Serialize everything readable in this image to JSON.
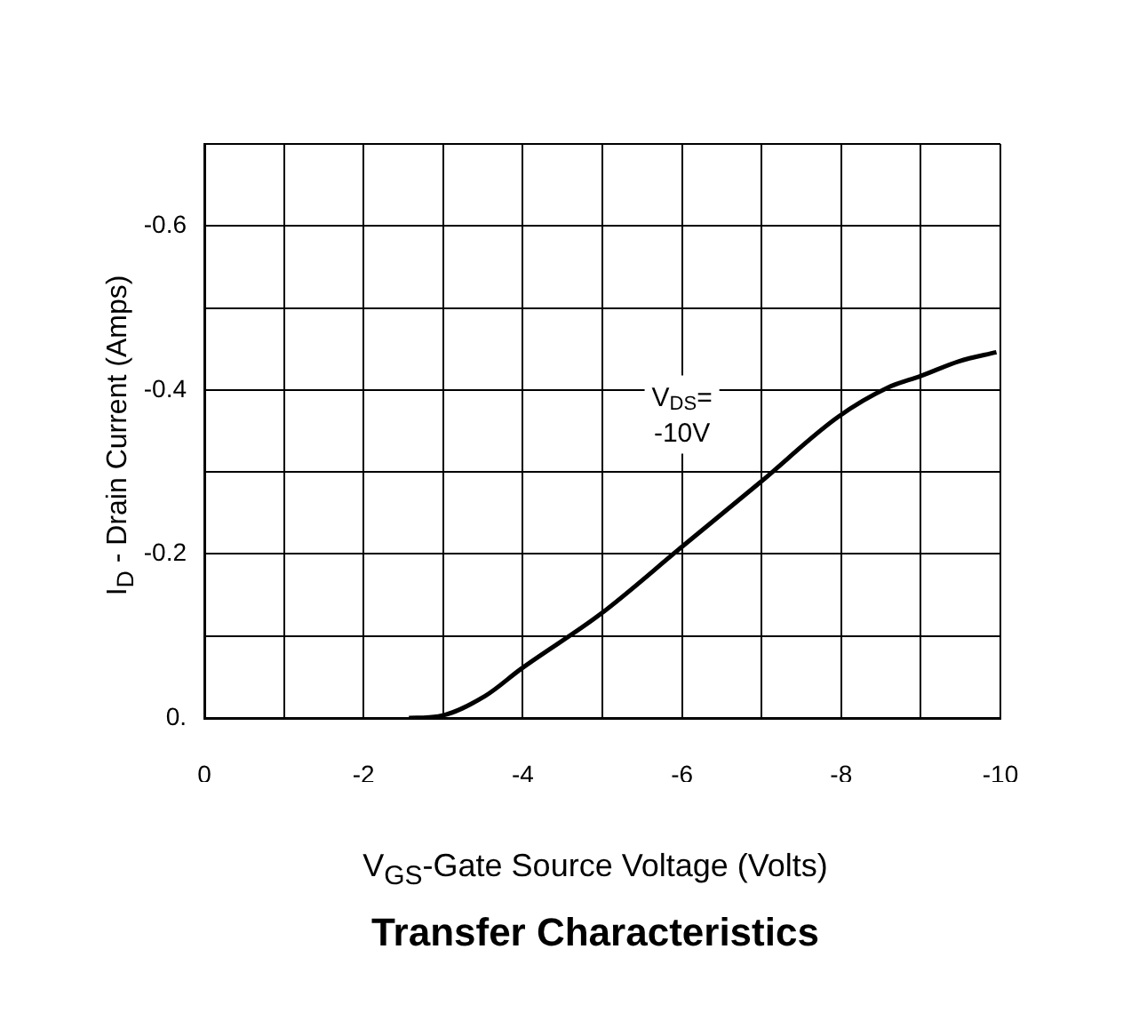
{
  "chart_data": {
    "type": "line",
    "title": "Transfer Characteristics",
    "xlabel": "V$_{GS}$-Gate Source Voltage (Volts)",
    "ylabel": "I$_{D}$ - Drain Current (Amps)",
    "x": [
      -2.57,
      -2.94,
      -3.53,
      -3.98,
      -4.98,
      -5.99,
      -6.99,
      -7.96,
      -8.59,
      -9.0,
      -9.48,
      -9.95
    ],
    "series": [
      {
        "color": "#000000",
        "values": [
          0,
          -0.002,
          -0.027,
          -0.06,
          -0.127,
          -0.208,
          -0.288,
          -0.367,
          -0.403,
          -0.417,
          -0.435,
          -0.446
        ]
      }
    ],
    "xlim": [
      0,
      -10
    ],
    "xticks": [
      0,
      {
        "value": -1,
        "label": null
      },
      -2,
      {
        "value": -3,
        "label": null
      },
      -4,
      {
        "value": -5,
        "label": null
      },
      -6,
      {
        "value": -7,
        "label": null
      },
      -8,
      {
        "value": -9,
        "label": null
      },
      -10
    ],
    "ylim": [
      0,
      -0.7
    ],
    "yticks": [
      {
        "value": 0,
        "label": "0."
      },
      {
        "value": -0.1,
        "label": null
      },
      -0.2,
      {
        "value": -0.3,
        "label": null
      },
      -0.4,
      {
        "value": -0.5,
        "label": null
      },
      -0.6,
      {
        "value": -0.7,
        "label": null
      }
    ],
    "grid": true,
    "legend": false,
    "marker": "none",
    "line_style": "solid",
    "annotations": [
      {
        "text": "V$_{DS}$=\n-10V",
        "x": -6,
        "y": -0.37
      }
    ]
  }
}
